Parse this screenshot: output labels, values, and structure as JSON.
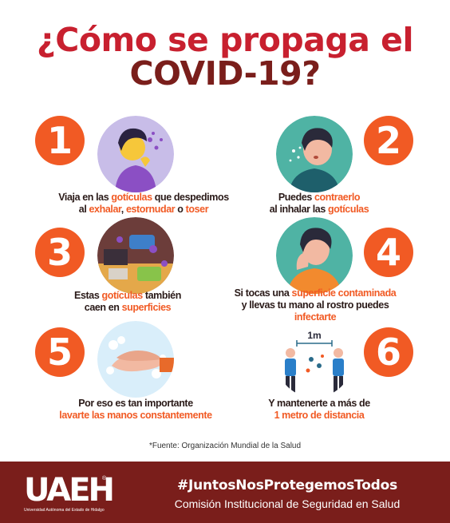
{
  "title": {
    "line1": "¿Cómo se propaga el",
    "line2": "COVID-19?"
  },
  "steps": [
    {
      "number": "1",
      "caption_line1": [
        {
          "t": "Viaja en las ",
          "h": false
        },
        {
          "t": "gotículas",
          "h": true
        },
        {
          "t": " que despedimos",
          "h": false
        }
      ],
      "caption_line2": [
        {
          "t": "al ",
          "h": false
        },
        {
          "t": "exhalar",
          "h": true
        },
        {
          "t": ", ",
          "h": false
        },
        {
          "t": "estornudar",
          "h": true
        },
        {
          "t": " o ",
          "h": false
        },
        {
          "t": "toser",
          "h": true
        }
      ]
    },
    {
      "number": "2",
      "caption_line1": [
        {
          "t": "Puedes ",
          "h": false
        },
        {
          "t": "contraerlo",
          "h": true
        }
      ],
      "caption_line2": [
        {
          "t": "al inhalar las ",
          "h": false
        },
        {
          "t": "gotículas",
          "h": true
        }
      ]
    },
    {
      "number": "3",
      "caption_line1": [
        {
          "t": "Estas ",
          "h": false
        },
        {
          "t": "gotículas",
          "h": true
        },
        {
          "t": " también",
          "h": false
        }
      ],
      "caption_line2": [
        {
          "t": "caen en ",
          "h": false
        },
        {
          "t": "superficies",
          "h": true
        }
      ]
    },
    {
      "number": "4",
      "caption_line1": [
        {
          "t": "Si tocas una ",
          "h": false
        },
        {
          "t": "superficie contaminada",
          "h": true
        }
      ],
      "caption_line2": [
        {
          "t": "y llevas tu mano al rostro puedes",
          "h": false
        }
      ],
      "caption_line3": [
        {
          "t": "infectarte",
          "h": true
        }
      ]
    },
    {
      "number": "5",
      "caption_line1": [
        {
          "t": "Por eso es tan importante",
          "h": false
        }
      ],
      "caption_line2": [
        {
          "t": "lavarte las manos constantemente",
          "h": true
        }
      ]
    },
    {
      "number": "6",
      "distance_label": "1m",
      "caption_line1": [
        {
          "t": "Y mantenerte a más de",
          "h": false
        }
      ],
      "caption_line2": [
        {
          "t": "1 metro de distancia",
          "h": true
        }
      ]
    }
  ],
  "source": "*Fuente: Organización Mundial de la Salud",
  "footer": {
    "logo": "UAEH",
    "logo_reg": "®",
    "logo_subtitle": "Universidad Autónoma del Estado de Hidalgo",
    "hashtag": "#JuntosNosProtegemosTodos",
    "commission": "Comisión Institucional de Seguridad en Salud"
  },
  "colors": {
    "accent": "#f15a24",
    "title_red": "#c8202f",
    "dark_red": "#7a1e1b"
  }
}
